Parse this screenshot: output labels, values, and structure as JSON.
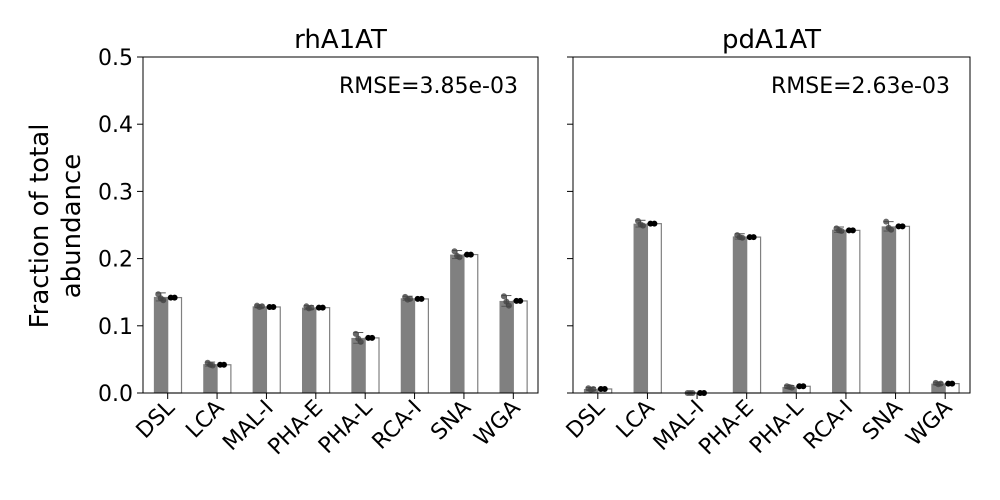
{
  "figure": {
    "ylabel_line1": "Fraction of total",
    "ylabel_line2": "abundance"
  },
  "chart_data": [
    {
      "type": "bar",
      "title": "rhA1AT",
      "annotation": "RMSE=3.85e-03",
      "categories": [
        "DSL",
        "LCA",
        "MAL-I",
        "PHA-E",
        "PHA-L",
        "RCA-I",
        "SNA",
        "WGA"
      ],
      "ylim": [
        0,
        0.5
      ],
      "yticks": [
        "0.0",
        "0.1",
        "0.2",
        "0.3",
        "0.4",
        "0.5"
      ],
      "series": [
        {
          "style": "filled",
          "values": [
            0.143,
            0.043,
            0.129,
            0.127,
            0.082,
            0.141,
            0.206,
            0.137
          ],
          "errors": [
            0.006,
            0.003,
            0.002,
            0.003,
            0.008,
            0.003,
            0.006,
            0.008
          ],
          "replicates": [
            [
              0.147,
              0.141,
              0.138
            ],
            [
              0.045,
              0.042,
              0.041
            ],
            [
              0.13,
              0.128,
              0.129
            ],
            [
              0.129,
              0.126,
              0.127
            ],
            [
              0.088,
              0.081,
              0.076
            ],
            [
              0.143,
              0.139,
              0.14
            ],
            [
              0.211,
              0.204,
              0.202
            ],
            [
              0.144,
              0.136,
              0.13
            ]
          ]
        },
        {
          "style": "open",
          "values": [
            0.142,
            0.042,
            0.128,
            0.127,
            0.082,
            0.14,
            0.206,
            0.137
          ],
          "predicted": [
            0.142,
            0.042,
            0.128,
            0.127,
            0.082,
            0.14,
            0.206,
            0.137
          ]
        }
      ],
      "colors": {
        "filled": "#808080",
        "open_edge": "#808080",
        "points": "#000000"
      },
      "grid": false
    },
    {
      "type": "bar",
      "title": "pdA1AT",
      "annotation": "RMSE=2.63e-03",
      "categories": [
        "DSL",
        "LCA",
        "MAL-I",
        "PHA-E",
        "PHA-L",
        "RCA-I",
        "SNA",
        "WGA"
      ],
      "ylim": [
        0,
        0.5
      ],
      "yticks": [
        "0.0",
        "0.1",
        "0.2",
        "0.3",
        "0.4",
        "0.5"
      ],
      "series": [
        {
          "style": "filled",
          "values": [
            0.006,
            0.252,
            0.0,
            0.233,
            0.009,
            0.243,
            0.248,
            0.014
          ],
          "errors": [
            0.002,
            0.005,
            0.0005,
            0.004,
            0.002,
            0.004,
            0.007,
            0.002
          ],
          "replicates": [
            [
              0.007,
              0.005,
              0.006
            ],
            [
              0.256,
              0.251,
              0.249
            ],
            [
              0.0,
              0.0,
              0.0
            ],
            [
              0.235,
              0.232,
              0.231
            ],
            [
              0.01,
              0.009,
              0.008
            ],
            [
              0.245,
              0.242,
              0.241
            ],
            [
              0.255,
              0.246,
              0.243
            ],
            [
              0.015,
              0.013,
              0.014
            ]
          ]
        },
        {
          "style": "open",
          "values": [
            0.006,
            0.252,
            0.0,
            0.232,
            0.01,
            0.242,
            0.248,
            0.014
          ],
          "predicted": [
            0.006,
            0.252,
            0.0,
            0.232,
            0.01,
            0.242,
            0.248,
            0.014
          ]
        }
      ],
      "colors": {
        "filled": "#808080",
        "open_edge": "#808080",
        "points": "#000000"
      },
      "grid": false
    }
  ]
}
